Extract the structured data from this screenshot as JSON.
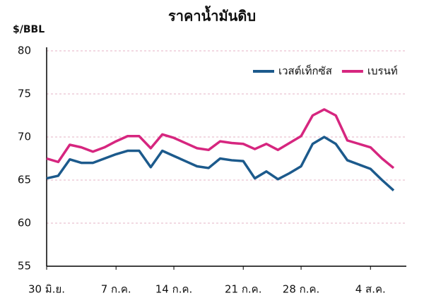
{
  "chart_data": {
    "type": "line",
    "title": "ราคาน้ำมันดิบ",
    "y_label": "$/BBL",
    "categories": [
      "30 มิ.ย.",
      null,
      null,
      null,
      null,
      null,
      "7 ก.ค.",
      null,
      null,
      null,
      null,
      "14 ก.ค.",
      null,
      null,
      null,
      null,
      null,
      "21 ก.ค.",
      null,
      null,
      null,
      null,
      "28 ก.ค.",
      null,
      null,
      null,
      null,
      null,
      "4 ส.ค.",
      null,
      null
    ],
    "series": [
      {
        "name": "เวสต์เท็กซัส",
        "color": "#1c5a8c",
        "values": [
          65.2,
          65.5,
          67.4,
          67.0,
          67.0,
          67.5,
          68.0,
          68.4,
          68.4,
          66.5,
          68.4,
          67.8,
          67.2,
          66.6,
          66.4,
          67.5,
          67.3,
          67.2,
          65.2,
          66.0,
          65.1,
          65.8,
          66.6,
          69.2,
          70.0,
          69.2,
          67.3,
          66.8,
          66.3,
          65.0,
          63.8
        ]
      },
      {
        "name": "เบรนท์",
        "color": "#d6267f",
        "values": [
          67.5,
          67.1,
          69.1,
          68.8,
          68.3,
          68.8,
          69.5,
          70.1,
          70.1,
          68.7,
          70.3,
          69.9,
          69.3,
          68.7,
          68.5,
          69.5,
          69.3,
          69.2,
          68.6,
          69.2,
          68.5,
          69.3,
          70.1,
          72.5,
          73.2,
          72.5,
          69.6,
          69.2,
          68.8,
          67.5,
          66.4
        ]
      }
    ],
    "ylim": [
      55,
      80
    ],
    "yticks": [
      55,
      60,
      65,
      70,
      75,
      80
    ],
    "grid": true,
    "legend": "top-right"
  }
}
